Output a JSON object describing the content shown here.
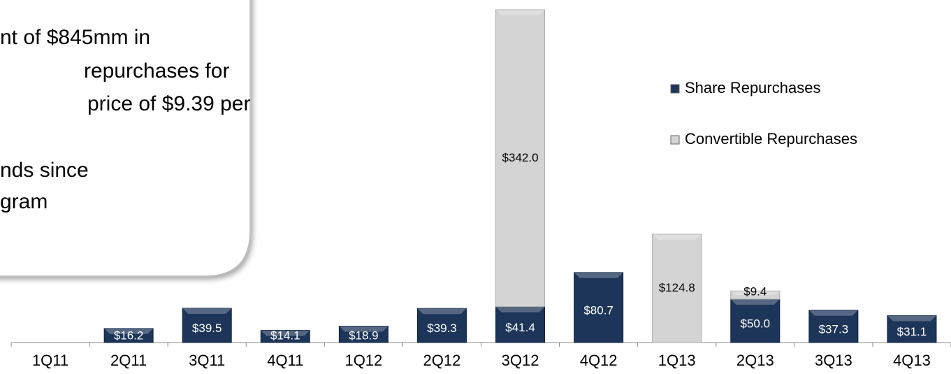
{
  "chart_data": {
    "type": "bar",
    "stacked": true,
    "categories": [
      "1Q11",
      "2Q11",
      "3Q11",
      "4Q11",
      "1Q12",
      "2Q12",
      "3Q12",
      "4Q12",
      "1Q13",
      "2Q13",
      "3Q13",
      "4Q13"
    ],
    "series": [
      {
        "name": "Share Repurchases",
        "color": "#1c3558",
        "values": [
          null,
          16.2,
          39.5,
          14.1,
          18.9,
          39.3,
          41.4,
          80.7,
          null,
          50.0,
          37.3,
          31.1
        ],
        "value_labels": [
          null,
          "$16.2",
          "$39.5",
          "$14.1",
          "$18.9",
          "$39.3",
          "$41.4",
          "$80.7",
          null,
          "$50.0",
          "$37.3",
          "$31.1"
        ]
      },
      {
        "name": "Convertible Repurchases",
        "color": "#d4d4d4",
        "values": [
          null,
          null,
          null,
          null,
          null,
          null,
          342.0,
          null,
          124.8,
          9.4,
          null,
          null
        ],
        "value_labels": [
          null,
          null,
          null,
          null,
          null,
          null,
          "$342.0",
          null,
          "$124.8",
          "$9.4",
          null,
          null
        ]
      }
    ],
    "annotations": [
      "nt of $845mm in",
      "repurchases for",
      "price of $9.39 per",
      "nds since",
      "gram"
    ]
  }
}
